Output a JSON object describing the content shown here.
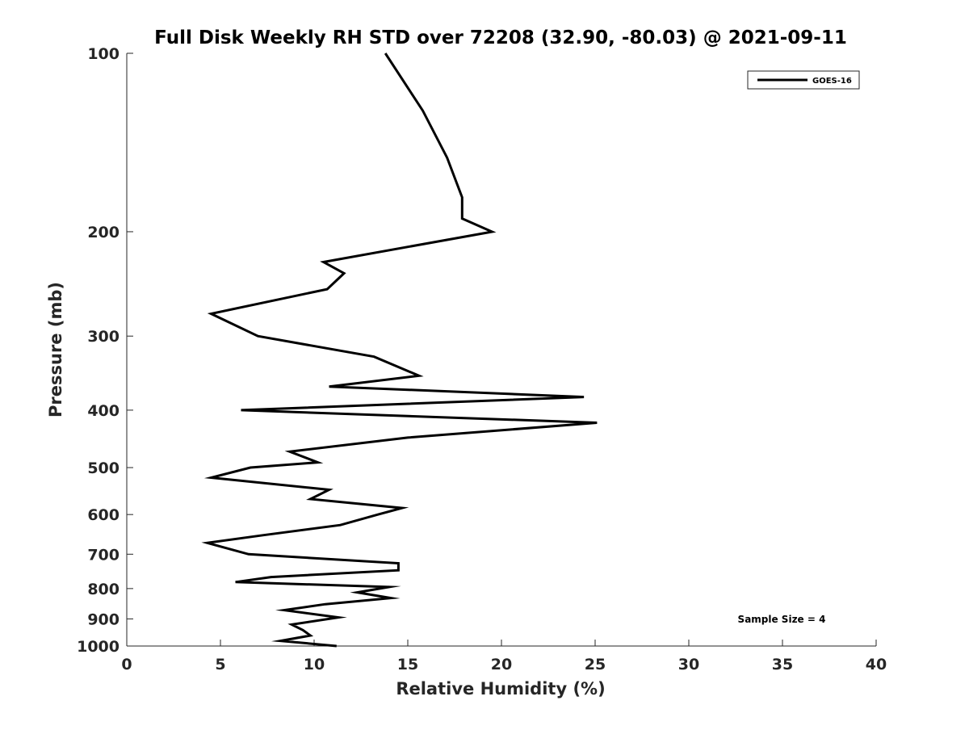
{
  "chart_data": {
    "type": "line",
    "title": "Full Disk Weekly RH STD over 72208 (32.90, -80.03) @ 2021-09-11",
    "xlabel": "Relative Humidity (%)",
    "ylabel": "Pressure (mb)",
    "xlim": [
      0,
      40
    ],
    "ylim": [
      100,
      1000
    ],
    "y_scale": "log",
    "y_direction": "reversed",
    "grid": false,
    "legend_position": "top-right",
    "x_ticks": [
      "0",
      "5",
      "10",
      "15",
      "20",
      "25",
      "30",
      "35",
      "40"
    ],
    "y_ticks": [
      "100",
      "200",
      "300",
      "400",
      "500",
      "600",
      "700",
      "800",
      "900",
      "1000"
    ],
    "series": [
      {
        "name": "GOES-16",
        "color": "#000000",
        "x": [
          13.8,
          15.8,
          17.1,
          17.9,
          17.9,
          19.5,
          10.5,
          11.6,
          10.7,
          4.5,
          7.0,
          13.2,
          15.6,
          10.8,
          24.4,
          6.1,
          25.1,
          15.0,
          8.7,
          10.2,
          6.6,
          4.5,
          10.8,
          9.8,
          14.7,
          13.4,
          11.4,
          7.3,
          4.3,
          6.5,
          14.5,
          14.5,
          7.7,
          5.8,
          14.0,
          12.3,
          14.1,
          10.6,
          8.4,
          11.3,
          8.8,
          9.4,
          9.8,
          8.2,
          11.2
        ],
        "y": [
          100,
          125,
          150,
          175,
          190,
          200,
          225,
          235,
          250,
          275,
          300,
          325,
          350,
          365,
          380,
          400,
          420,
          445,
          470,
          490,
          500,
          520,
          545,
          565,
          585,
          600,
          625,
          650,
          670,
          700,
          725,
          745,
          765,
          780,
          795,
          812,
          830,
          850,
          870,
          895,
          920,
          940,
          960,
          980,
          1000
        ]
      }
    ],
    "annotations": [
      "Sample Size = 4"
    ]
  }
}
